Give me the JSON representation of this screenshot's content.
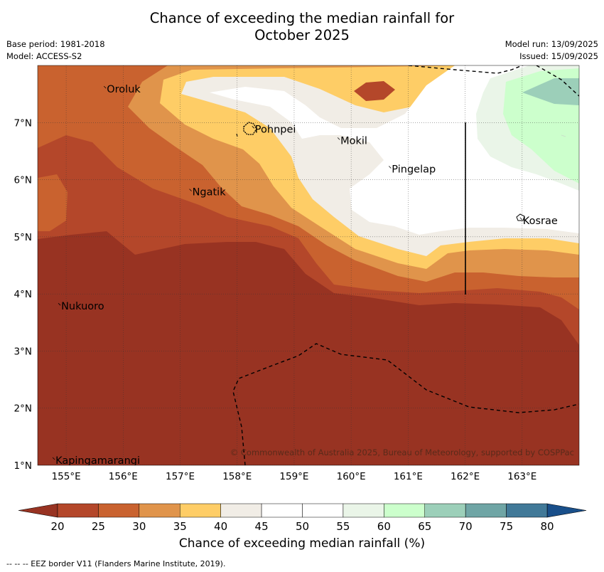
{
  "header": {
    "title_line1": "Chance of exceeding the median rainfall for",
    "title_line2": "October 2025",
    "base_period": "Base period: 1981-2018",
    "model": "Model: ACCESS-S2",
    "model_run": "Model run: 13/09/2025",
    "issued": "Issued: 15/09/2025"
  },
  "map": {
    "lon_ticks": [
      "155°E",
      "156°E",
      "157°E",
      "158°E",
      "159°E",
      "160°E",
      "161°E",
      "162°E",
      "163°E"
    ],
    "lat_ticks": [
      "1°N",
      "2°N",
      "3°N",
      "4°N",
      "5°N",
      "6°N",
      "7°N"
    ],
    "places": [
      {
        "name": "Oroluk",
        "lon": 155.7,
        "lat": 7.6
      },
      {
        "name": "Pohnpei",
        "lon": 158.3,
        "lat": 6.9
      },
      {
        "name": "Mokil",
        "lon": 159.8,
        "lat": 6.7
      },
      {
        "name": "Pingelap",
        "lon": 160.7,
        "lat": 6.2
      },
      {
        "name": "Ngatik",
        "lon": 157.2,
        "lat": 5.8
      },
      {
        "name": "Kosrae",
        "lon": 163.0,
        "lat": 5.3
      },
      {
        "name": "Nukuoro",
        "lon": 154.9,
        "lat": 3.8
      },
      {
        "name": "Kapingamarangi",
        "lon": 154.8,
        "lat": 1.1
      }
    ],
    "copyright": "© Commonwealth of Australia 2025, Bureau of Meteorology, supported by COSPPac"
  },
  "colorbar": {
    "ticks": [
      "20",
      "25",
      "30",
      "35",
      "40",
      "45",
      "50",
      "55",
      "60",
      "65",
      "70",
      "75",
      "80"
    ],
    "colors": [
      "#b4472a",
      "#c9622f",
      "#e0944b",
      "#fecd66",
      "#f1ede6",
      "#ffffff",
      "#ffffff",
      "#eaf5e8",
      "#ccffcc",
      "#9ccfb9",
      "#6fa5a5",
      "#417998"
    ],
    "under_color": "#983322",
    "over_color": "#194f8a",
    "title": "Chance of exceeding median rainfall (%)"
  },
  "footnote": "--  --  -- EEZ border V11 (Flanders Marine Institute, 2019)."
}
